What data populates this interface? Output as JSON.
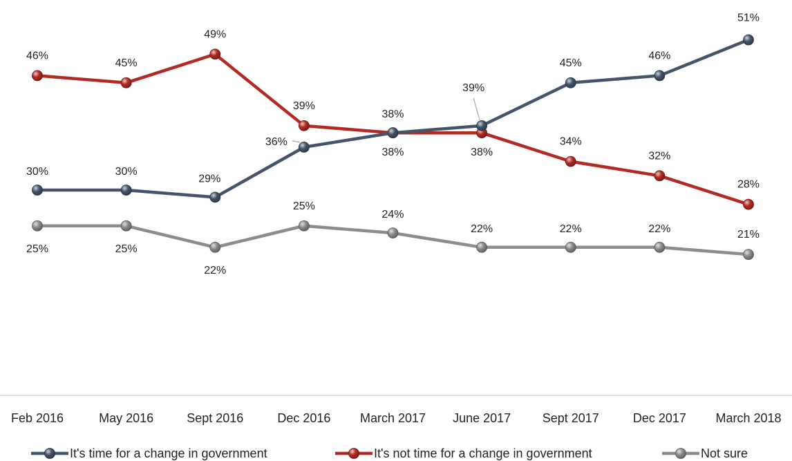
{
  "chart_data": {
    "type": "line",
    "categories": [
      "Feb 2016",
      "May 2016",
      "Sept 2016",
      "Dec 2016",
      "March 2017",
      "June 2017",
      "Sept 2017",
      "Dec 2017",
      "March 2018"
    ],
    "ylim": [
      0,
      55
    ],
    "grid": false,
    "legend_position": "bottom",
    "series": [
      {
        "name": "It's time for a change in government",
        "color": "#44546a",
        "values": [
          30,
          30,
          29,
          36,
          38,
          39,
          45,
          46,
          51
        ],
        "labels": [
          "30%",
          "30%",
          "29%",
          "36%",
          "38%",
          "39%",
          "45%",
          "46%",
          "51%"
        ]
      },
      {
        "name": "It's not time for a change in government",
        "color": "#b22a23",
        "values": [
          46,
          45,
          49,
          39,
          38,
          38,
          34,
          32,
          28
        ],
        "labels": [
          "46%",
          "45%",
          "49%",
          "39%",
          "38%",
          "38%",
          "34%",
          "32%",
          "28%"
        ]
      },
      {
        "name": "Not sure",
        "color": "#8c8c8c",
        "values": [
          25,
          25,
          22,
          25,
          24,
          22,
          22,
          22,
          21
        ],
        "labels": [
          "25%",
          "25%",
          "22%",
          "25%",
          "24%",
          "22%",
          "22%",
          "22%",
          "21%"
        ]
      }
    ]
  }
}
